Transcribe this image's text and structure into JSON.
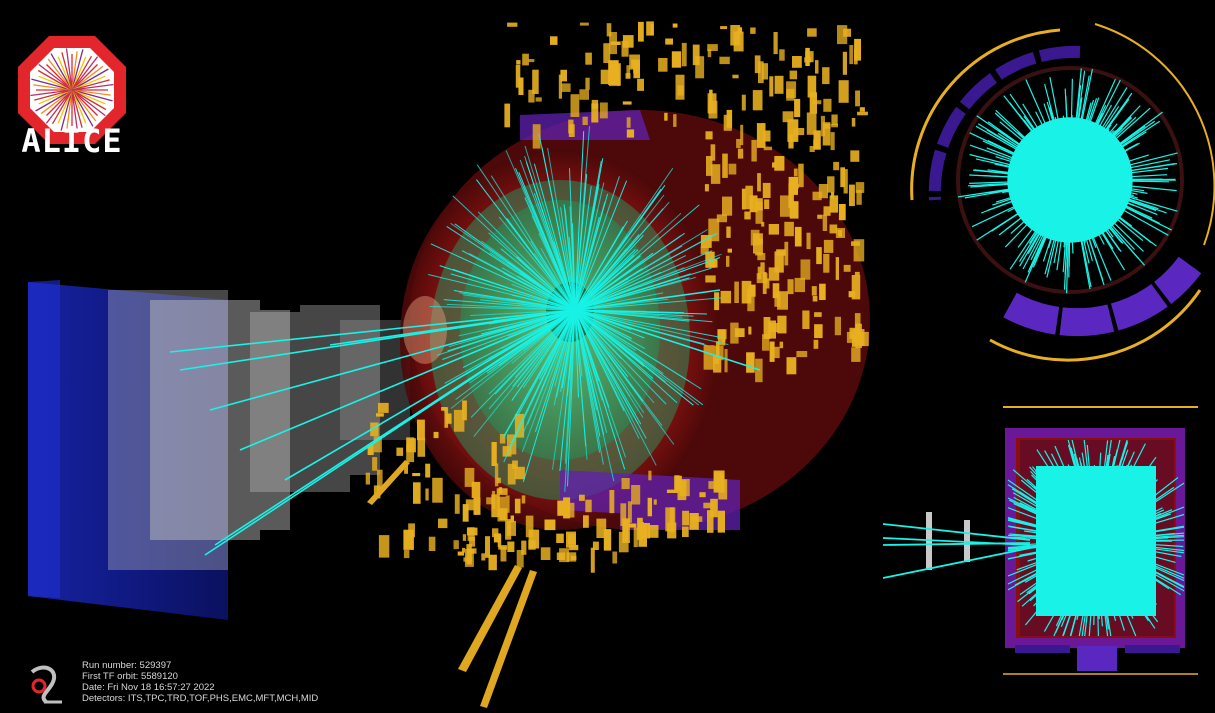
{
  "logo": {
    "text": "ALICE"
  },
  "run_info": {
    "lines": [
      "Run number: 529397",
      "First TF orbit: 5589120",
      "Date: Fri Nov 18 16:57:27 2022",
      "Detectors: ITS,TPC,TRD,TOF,PHS,EMC,MFT,MCH,MID"
    ]
  },
  "colors": {
    "background": "#000000",
    "tracks": "#19f2e6",
    "calorimeter": "#e8b020",
    "tpc_outer": "#8a1010",
    "muon_chambers": "#1020a0"
  }
}
